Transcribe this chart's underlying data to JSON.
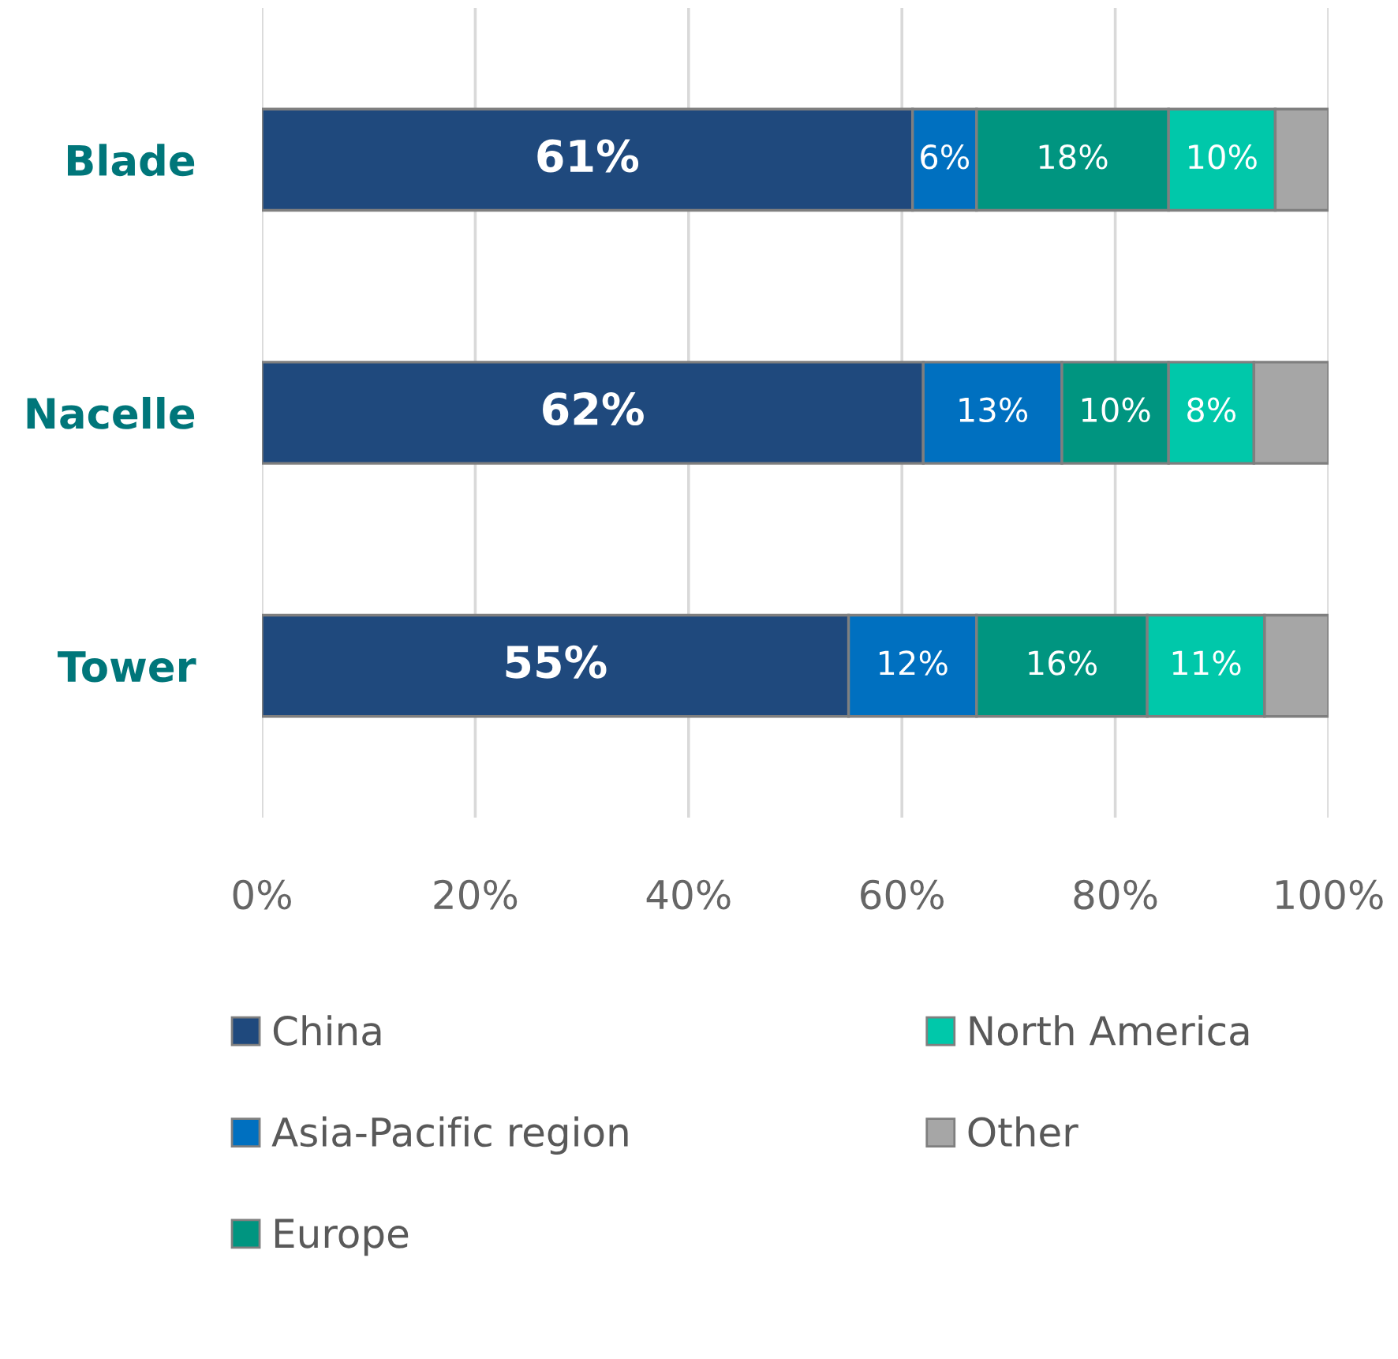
{
  "chart_data": {
    "type": "bar",
    "orientation": "horizontal",
    "stacked": true,
    "categories": [
      "Blade",
      "Nacelle",
      "Tower"
    ],
    "series": [
      {
        "name": "China",
        "color": "#1f497d",
        "values": [
          61,
          62,
          55
        ],
        "value_labels": [
          "61%",
          "62%",
          "55%"
        ]
      },
      {
        "name": "Asia-Pacific region",
        "color": "#0070c0",
        "values": [
          6,
          13,
          12
        ],
        "value_labels": [
          "6%",
          "13%",
          "12%"
        ]
      },
      {
        "name": "Europe",
        "color": "#009580",
        "values": [
          18,
          10,
          16
        ],
        "value_labels": [
          "18%",
          "10%",
          "16%"
        ]
      },
      {
        "name": "North America",
        "color": "#00c8aa",
        "values": [
          10,
          8,
          11
        ],
        "value_labels": [
          "10%",
          "8%",
          "11%"
        ]
      },
      {
        "name": "Other",
        "color": "#a6a6a6",
        "values": [
          5,
          7,
          6
        ],
        "value_labels": [
          null,
          null,
          null
        ]
      }
    ],
    "xlim": [
      0,
      100
    ],
    "xticks": [
      {
        "value": 0,
        "label": "0%"
      },
      {
        "value": 20,
        "label": "20%"
      },
      {
        "value": 40,
        "label": "40%"
      },
      {
        "value": 60,
        "label": "60%"
      },
      {
        "value": 80,
        "label": "80%"
      },
      {
        "value": 100,
        "label": "100%"
      }
    ],
    "grid": "x",
    "legend": "bottom"
  }
}
